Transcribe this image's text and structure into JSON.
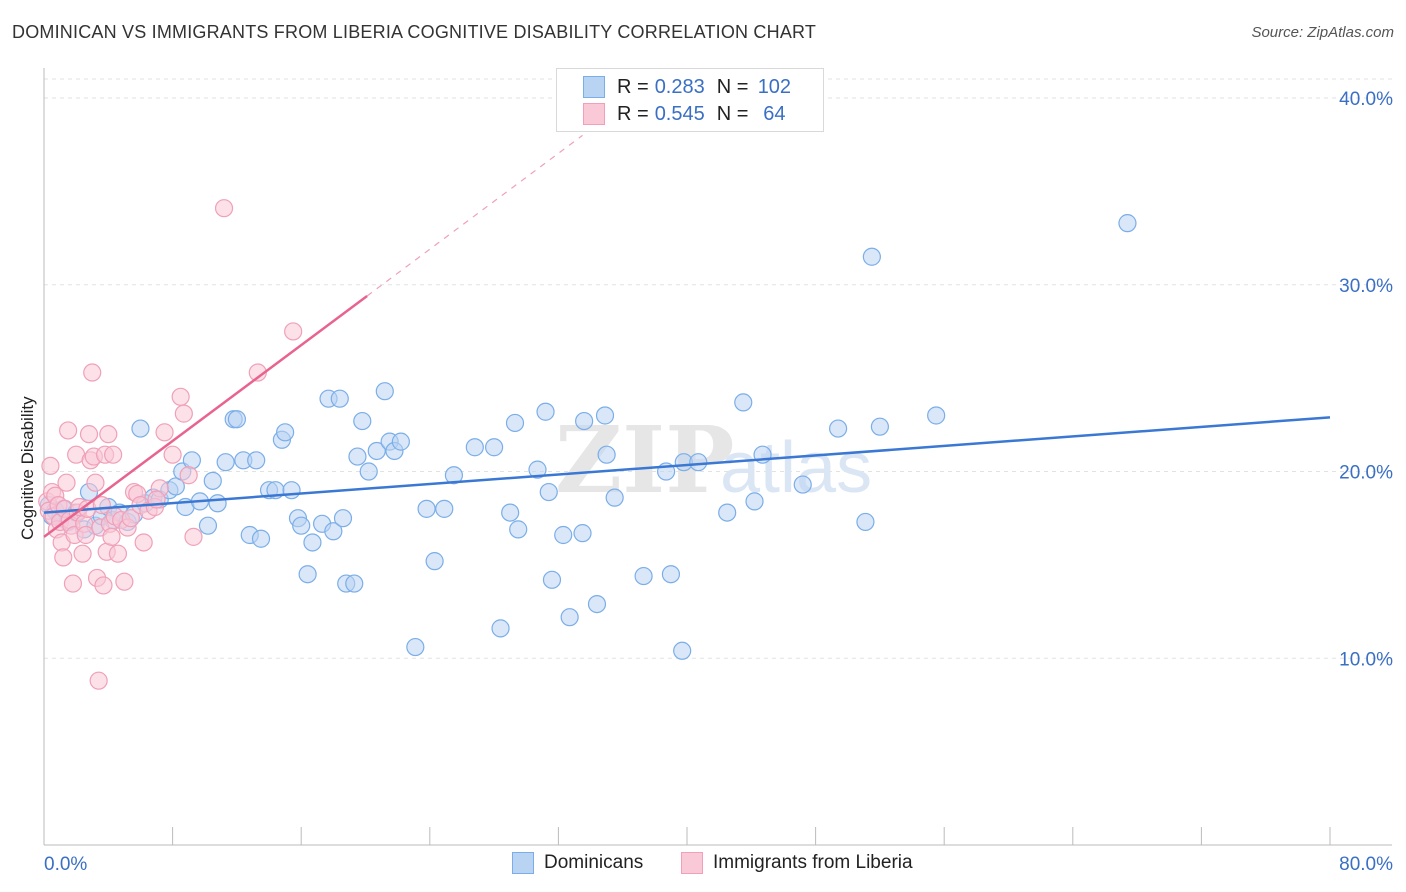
{
  "title": "DOMINICAN VS IMMIGRANTS FROM LIBERIA COGNITIVE DISABILITY CORRELATION CHART",
  "source": "Source: ZipAtlas.com",
  "watermark": {
    "zip": "ZIP",
    "atlas": "atlas"
  },
  "legend": {
    "rows": [
      {
        "r_label": "R =",
        "r_value": "0.283",
        "n_label": "N =",
        "n_value": "102",
        "color": "#7baee8",
        "fill": "#b9d3f3"
      },
      {
        "r_label": "R =",
        "r_value": "0.545",
        "n_label": "N =",
        "n_value": "64",
        "color": "#f0a0b8",
        "fill": "#f9c9d7"
      }
    ]
  },
  "bottom_legend": [
    {
      "label": "Dominicans",
      "color": "#7baee8",
      "fill": "#b9d3f3"
    },
    {
      "label": "Immigrants from Liberia",
      "color": "#f0a0b8",
      "fill": "#f9c9d7"
    }
  ],
  "chart_data": {
    "type": "scatter",
    "title": "DOMINICAN VS IMMIGRANTS FROM LIBERIA COGNITIVE DISABILITY CORRELATION CHART",
    "xlabel": "",
    "ylabel": "Cognitive Disability",
    "xlim": [
      0,
      80
    ],
    "ylim": [
      0,
      41.5
    ],
    "x_tick_labels": [
      "0.0%",
      "80.0%"
    ],
    "y_ticks": [
      10,
      20,
      30,
      40
    ],
    "y_tick_labels": [
      "10.0%",
      "20.0%",
      "30.0%",
      "40.0%"
    ],
    "grid": true,
    "legend_position": "top-center",
    "series": [
      {
        "name": "Dominicans",
        "color": "#3a78d4",
        "fill": "#b9d3f3",
        "stroke": "#7baee8",
        "trend": {
          "x": [
            0,
            80
          ],
          "y": [
            17.8,
            22.9
          ],
          "dashed_extension": false
        },
        "points": [
          [
            0.3,
            18.2
          ],
          [
            0.5,
            17.6
          ],
          [
            0.7,
            17.9
          ],
          [
            1.0,
            17.5
          ],
          [
            1.2,
            18.0
          ],
          [
            1.5,
            17.3
          ],
          [
            2.0,
            17.8
          ],
          [
            2.5,
            16.9
          ],
          [
            2.8,
            18.9
          ],
          [
            3.2,
            17.1
          ],
          [
            3.6,
            17.6
          ],
          [
            4.0,
            18.1
          ],
          [
            4.3,
            17.4
          ],
          [
            4.7,
            17.8
          ],
          [
            5.2,
            17.3
          ],
          [
            5.6,
            17.7
          ],
          [
            6.0,
            22.3
          ],
          [
            6.3,
            18.3
          ],
          [
            6.8,
            18.6
          ],
          [
            7.2,
            18.5
          ],
          [
            7.8,
            19.0
          ],
          [
            8.2,
            19.2
          ],
          [
            8.6,
            20.0
          ],
          [
            8.8,
            18.1
          ],
          [
            9.2,
            20.6
          ],
          [
            9.7,
            18.4
          ],
          [
            10.2,
            17.1
          ],
          [
            10.5,
            19.5
          ],
          [
            10.8,
            18.3
          ],
          [
            11.3,
            20.5
          ],
          [
            11.8,
            22.8
          ],
          [
            12.0,
            22.8
          ],
          [
            12.4,
            20.6
          ],
          [
            12.8,
            16.6
          ],
          [
            13.2,
            20.6
          ],
          [
            13.5,
            16.4
          ],
          [
            14.0,
            19.0
          ],
          [
            14.4,
            19.0
          ],
          [
            14.8,
            21.7
          ],
          [
            15.0,
            22.1
          ],
          [
            15.4,
            19.0
          ],
          [
            15.8,
            17.5
          ],
          [
            16.0,
            17.1
          ],
          [
            16.4,
            14.5
          ],
          [
            16.7,
            16.2
          ],
          [
            17.3,
            17.2
          ],
          [
            17.7,
            23.9
          ],
          [
            18.0,
            16.8
          ],
          [
            18.4,
            23.9
          ],
          [
            18.6,
            17.5
          ],
          [
            18.8,
            14.0
          ],
          [
            19.3,
            14.0
          ],
          [
            19.5,
            20.8
          ],
          [
            19.8,
            22.7
          ],
          [
            20.2,
            20.0
          ],
          [
            20.7,
            21.1
          ],
          [
            21.2,
            24.3
          ],
          [
            21.5,
            21.6
          ],
          [
            21.8,
            21.1
          ],
          [
            22.2,
            21.6
          ],
          [
            23.1,
            10.6
          ],
          [
            23.8,
            18.0
          ],
          [
            24.3,
            15.2
          ],
          [
            24.9,
            18.0
          ],
          [
            25.5,
            19.8
          ],
          [
            26.8,
            21.3
          ],
          [
            28.0,
            21.3
          ],
          [
            28.4,
            11.6
          ],
          [
            29.0,
            17.8
          ],
          [
            29.3,
            22.6
          ],
          [
            29.5,
            16.9
          ],
          [
            30.7,
            20.1
          ],
          [
            31.2,
            23.2
          ],
          [
            31.4,
            18.9
          ],
          [
            31.6,
            14.2
          ],
          [
            32.3,
            16.6
          ],
          [
            32.7,
            12.2
          ],
          [
            33.5,
            16.7
          ],
          [
            33.6,
            22.7
          ],
          [
            34.4,
            12.9
          ],
          [
            34.9,
            23.0
          ],
          [
            35.0,
            20.9
          ],
          [
            35.5,
            18.6
          ],
          [
            37.3,
            14.4
          ],
          [
            38.7,
            20.0
          ],
          [
            39.0,
            14.5
          ],
          [
            39.7,
            10.4
          ],
          [
            39.8,
            20.5
          ],
          [
            40.7,
            20.5
          ],
          [
            42.5,
            17.8
          ],
          [
            43.5,
            23.7
          ],
          [
            44.2,
            18.4
          ],
          [
            44.7,
            20.9
          ],
          [
            47.2,
            19.3
          ],
          [
            49.4,
            22.3
          ],
          [
            51.1,
            17.3
          ],
          [
            51.5,
            31.5
          ],
          [
            52.0,
            22.4
          ],
          [
            55.5,
            23.0
          ],
          [
            67.4,
            33.3
          ]
        ]
      },
      {
        "name": "Immigrants from Liberia",
        "color": "#e8648f",
        "fill": "#f9c9d7",
        "stroke": "#f0a0b8",
        "trend": {
          "x": [
            0,
            20.1
          ],
          "y": [
            16.5,
            29.4
          ],
          "dashed_extension": true,
          "dash_to": [
            33.5,
            38.0
          ]
        },
        "points": [
          [
            0.2,
            18.4
          ],
          [
            0.3,
            17.9
          ],
          [
            0.4,
            20.3
          ],
          [
            0.5,
            18.9
          ],
          [
            0.6,
            17.6
          ],
          [
            0.7,
            18.7
          ],
          [
            0.8,
            16.9
          ],
          [
            0.9,
            18.2
          ],
          [
            1.0,
            17.3
          ],
          [
            1.1,
            16.2
          ],
          [
            1.2,
            15.4
          ],
          [
            1.3,
            18.0
          ],
          [
            1.4,
            19.4
          ],
          [
            1.5,
            22.2
          ],
          [
            1.6,
            17.4
          ],
          [
            1.7,
            17.1
          ],
          [
            1.8,
            14.0
          ],
          [
            1.9,
            16.6
          ],
          [
            2.0,
            20.9
          ],
          [
            2.1,
            17.8
          ],
          [
            2.2,
            18.1
          ],
          [
            2.4,
            15.6
          ],
          [
            2.5,
            17.2
          ],
          [
            2.6,
            16.6
          ],
          [
            2.7,
            18.0
          ],
          [
            2.8,
            22.0
          ],
          [
            2.9,
            20.6
          ],
          [
            3.0,
            25.3
          ],
          [
            3.1,
            20.8
          ],
          [
            3.2,
            19.4
          ],
          [
            3.3,
            14.3
          ],
          [
            3.4,
            8.8
          ],
          [
            3.5,
            17.0
          ],
          [
            3.6,
            18.2
          ],
          [
            3.7,
            13.9
          ],
          [
            3.8,
            20.9
          ],
          [
            3.9,
            15.7
          ],
          [
            4.0,
            22.0
          ],
          [
            4.1,
            17.2
          ],
          [
            4.2,
            16.5
          ],
          [
            4.3,
            20.9
          ],
          [
            4.4,
            17.6
          ],
          [
            4.6,
            15.6
          ],
          [
            4.8,
            17.4
          ],
          [
            5.0,
            14.1
          ],
          [
            5.2,
            17.0
          ],
          [
            5.4,
            17.5
          ],
          [
            5.6,
            18.9
          ],
          [
            5.8,
            18.8
          ],
          [
            6.0,
            18.2
          ],
          [
            6.2,
            16.2
          ],
          [
            6.5,
            17.9
          ],
          [
            6.9,
            18.1
          ],
          [
            7.2,
            19.1
          ],
          [
            7.5,
            22.1
          ],
          [
            8.0,
            20.9
          ],
          [
            8.5,
            24.0
          ],
          [
            8.7,
            23.1
          ],
          [
            9.0,
            19.8
          ],
          [
            9.3,
            16.5
          ],
          [
            11.2,
            34.1
          ],
          [
            13.3,
            25.3
          ],
          [
            15.5,
            27.5
          ],
          [
            7.0,
            18.5
          ]
        ]
      }
    ]
  }
}
